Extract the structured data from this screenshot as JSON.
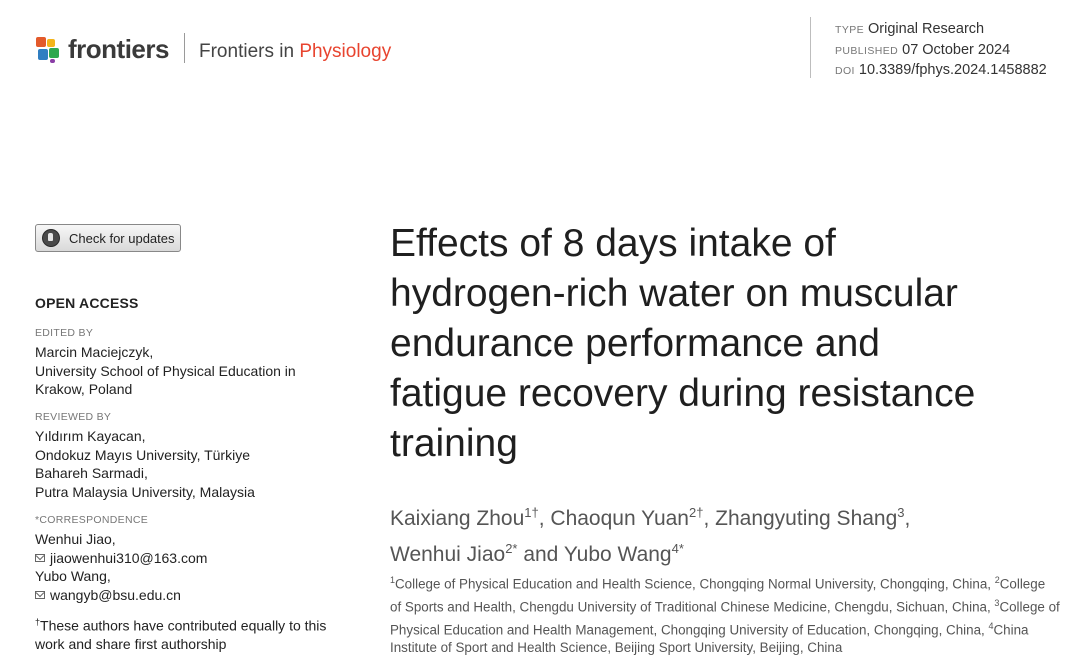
{
  "header": {
    "brand": "frontiers",
    "journal_prefix": "Frontiers in ",
    "journal_name": "Physiology",
    "type_label": "TYPE",
    "type_value": "Original Research",
    "published_label": "PUBLISHED",
    "published_value": "07 October 2024",
    "doi_label": "DOI",
    "doi_value": "10.3389/fphys.2024.1458882"
  },
  "sidebar": {
    "check_updates_label": "Check for updates",
    "open_access": "OPEN ACCESS",
    "edited_by_label": "EDITED BY",
    "editor_name": "Marcin Maciejczyk,",
    "editor_affil_1": "University School of Physical Education in",
    "editor_affil_2": "Krakow, Poland",
    "reviewed_by_label": "REVIEWED BY",
    "reviewer_1_name": "Yıldırım Kayacan,",
    "reviewer_1_affil": "Ondokuz Mayıs University, Türkiye",
    "reviewer_2_name": "Bahareh Sarmadi,",
    "reviewer_2_affil": "Putra Malaysia University, Malaysia",
    "correspondence_label": "*CORRESPONDENCE",
    "corr_1_name": "Wenhui Jiao,",
    "corr_1_email": "jiaowenhui310@163.com",
    "corr_2_name": "Yubo Wang,",
    "corr_2_email": "wangyb@bsu.edu.cn",
    "note_1": "These authors have contributed equally to this",
    "note_2": "work and share first authorship",
    "note_mark": "†"
  },
  "article": {
    "title_lines": [
      "Effects of 8 days intake of",
      "hydrogen-rich water on muscular",
      "endurance performance and",
      "fatigue recovery during resistance",
      "training"
    ],
    "authors": [
      {
        "name": "Kaixiang Zhou",
        "sup": "1†",
        "sep": ", "
      },
      {
        "name": "Chaoqun Yuan",
        "sup": "2†",
        "sep": ", "
      },
      {
        "name": "Zhangyuting Shang",
        "sup": "3",
        "sep": ","
      },
      {
        "name": "Wenhui Jiao",
        "sup": "2*",
        "sep": " and "
      },
      {
        "name": "Yubo Wang",
        "sup": "4*",
        "sep": ""
      }
    ],
    "affiliations": [
      {
        "sup": "1",
        "text": "College of Physical Education and Health Science, Chongqing Normal University, Chongqing, China, "
      },
      {
        "sup": "2",
        "text": "College of Sports and Health, Chengdu University of Traditional Chinese Medicine, Chengdu, Sichuan, China, "
      },
      {
        "sup": "3",
        "text": "College of Physical Education and Health Management, Chongqing University of Education, Chongqing, China, "
      },
      {
        "sup": "4",
        "text": "China Institute of Sport and Health Science, Beijing Sport University, Beijing, China"
      }
    ]
  }
}
